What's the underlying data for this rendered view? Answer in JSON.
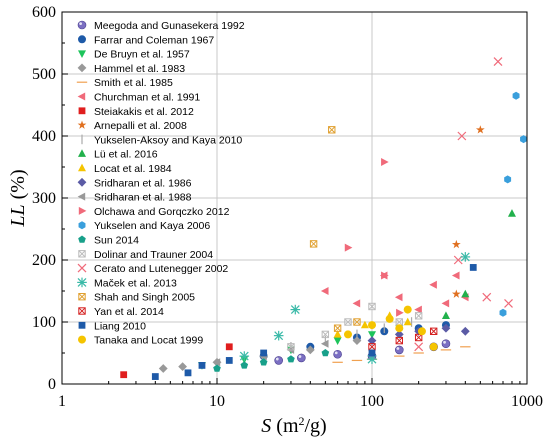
{
  "chart_data": {
    "type": "scatter",
    "x_scale": "log",
    "xlim": [
      1,
      1000
    ],
    "ylim": [
      0,
      600
    ],
    "x_ticks": [
      "1",
      "10",
      "100",
      "1000"
    ],
    "y_ticks": [
      "0",
      "100",
      "200",
      "300",
      "400",
      "500",
      "600"
    ],
    "xlabel": "S (m²/g)",
    "ylabel": "LL (%)",
    "grid": true,
    "legend_position": "top-left",
    "series": [
      {
        "name": "Meegoda and Gunasekera 1992",
        "marker": "sphere",
        "color": "#7b6fc2",
        "points": [
          [
            25,
            38
          ],
          [
            35,
            42
          ],
          [
            60,
            48
          ],
          [
            100,
            45
          ],
          [
            150,
            55
          ],
          [
            250,
            60
          ],
          [
            300,
            65
          ]
        ]
      },
      {
        "name": "Farrar and Coleman 1967",
        "marker": "circle",
        "color": "#1e5aa8",
        "points": [
          [
            20,
            45
          ],
          [
            40,
            60
          ],
          [
            80,
            75
          ],
          [
            120,
            85
          ],
          [
            200,
            90
          ],
          [
            300,
            95
          ]
        ]
      },
      {
        "name": "De Bruyn et al. 1957",
        "marker": "tri-down",
        "color": "#1dc45b",
        "points": [
          [
            8,
            30
          ],
          [
            15,
            40
          ],
          [
            30,
            55
          ],
          [
            60,
            70
          ],
          [
            100,
            80
          ],
          [
            150,
            90
          ]
        ]
      },
      {
        "name": "Hammel et al. 1983",
        "marker": "diamond",
        "color": "#999999",
        "points": [
          [
            4.5,
            25
          ],
          [
            6,
            28
          ],
          [
            10,
            35
          ],
          [
            20,
            45
          ],
          [
            40,
            55
          ],
          [
            80,
            70
          ]
        ]
      },
      {
        "name": "Smith et al. 1985",
        "marker": "dash",
        "color": "#f0a050",
        "points": [
          [
            60,
            35
          ],
          [
            80,
            38
          ],
          [
            100,
            40
          ],
          [
            150,
            45
          ],
          [
            200,
            50
          ],
          [
            300,
            55
          ],
          [
            400,
            60
          ]
        ]
      },
      {
        "name": "Churchman et al. 1991",
        "marker": "tri-left",
        "color": "#f06a7a",
        "points": [
          [
            50,
            150
          ],
          [
            80,
            130
          ],
          [
            120,
            175
          ],
          [
            150,
            140
          ],
          [
            200,
            120
          ],
          [
            250,
            160
          ],
          [
            300,
            130
          ],
          [
            350,
            175
          ],
          [
            400,
            140
          ]
        ]
      },
      {
        "name": "Steiakakis et al. 2012",
        "marker": "square",
        "color": "#e01e1e",
        "points": [
          [
            2.5,
            15
          ],
          [
            12,
            60
          ]
        ]
      },
      {
        "name": "Arnepalli et al. 2008",
        "marker": "star",
        "color": "#e07020",
        "points": [
          [
            350,
            225
          ],
          [
            500,
            410
          ],
          [
            350,
            145
          ]
        ]
      },
      {
        "name": "Yukselen-Aksoy and Kaya 2010",
        "marker": "vline",
        "color": "#aaaaaa",
        "points": [
          [
            30,
            60
          ],
          [
            50,
            70
          ],
          [
            80,
            80
          ],
          [
            120,
            90
          ],
          [
            180,
            100
          ]
        ]
      },
      {
        "name": "Lü et al. 2016",
        "marker": "tri-up",
        "color": "#22b14c",
        "points": [
          [
            800,
            275
          ],
          [
            400,
            145
          ],
          [
            300,
            110
          ]
        ]
      },
      {
        "name": "Locat et al. 1984",
        "marker": "tri-up",
        "color": "#f5c400",
        "points": [
          [
            60,
            80
          ],
          [
            90,
            95
          ],
          [
            130,
            110
          ],
          [
            170,
            100
          ]
        ]
      },
      {
        "name": "Sridharan et al. 1986",
        "marker": "diamond",
        "color": "#5b5ba5",
        "points": [
          [
            100,
            70
          ],
          [
            150,
            80
          ],
          [
            200,
            85
          ],
          [
            300,
            90
          ],
          [
            400,
            85
          ]
        ]
      },
      {
        "name": "Sridharan et al. 1988",
        "marker": "tri-left",
        "color": "#999999",
        "points": [
          [
            10,
            35
          ],
          [
            20,
            45
          ],
          [
            30,
            55
          ],
          [
            50,
            65
          ]
        ]
      },
      {
        "name": "Olchawa and Gorqczko 2012",
        "marker": "tri-right",
        "color": "#f06a7a",
        "points": [
          [
            70,
            220
          ],
          [
            120,
            358
          ],
          [
            120,
            175
          ],
          [
            150,
            115
          ]
        ]
      },
      {
        "name": "Yukselen and Kaya 2006",
        "marker": "hexagon",
        "color": "#3a9fdc",
        "points": [
          [
            850,
            465
          ],
          [
            950,
            395
          ],
          [
            750,
            330
          ],
          [
            700,
            115
          ]
        ]
      },
      {
        "name": "Sun 2014",
        "marker": "pentagon",
        "color": "#18a08a",
        "points": [
          [
            10,
            25
          ],
          [
            15,
            30
          ],
          [
            20,
            35
          ],
          [
            30,
            40
          ],
          [
            50,
            50
          ]
        ]
      },
      {
        "name": "Dolinar and Trauner 2004",
        "marker": "boxed-x",
        "color": "#bbbbbb",
        "points": [
          [
            30,
            60
          ],
          [
            50,
            80
          ],
          [
            70,
            100
          ],
          [
            100,
            125
          ],
          [
            150,
            100
          ],
          [
            200,
            110
          ]
        ]
      },
      {
        "name": "Cerato and Lutenegger 2002",
        "marker": "x",
        "color": "#f06a7a",
        "points": [
          [
            650,
            520
          ],
          [
            380,
            400
          ],
          [
            360,
            200
          ],
          [
            550,
            140
          ],
          [
            760,
            130
          ],
          [
            200,
            60
          ]
        ]
      },
      {
        "name": "Maček et al. 2013",
        "marker": "asterisk",
        "color": "#3abaa8",
        "points": [
          [
            32,
            120
          ],
          [
            400,
            205
          ],
          [
            25,
            78
          ],
          [
            15,
            45
          ],
          [
            100,
            40
          ]
        ]
      },
      {
        "name": "Shah and Singh 2005",
        "marker": "boxed-x",
        "color": "#e0a030",
        "points": [
          [
            55,
            410
          ],
          [
            42,
            226
          ],
          [
            60,
            90
          ],
          [
            80,
            100
          ]
        ]
      },
      {
        "name": "Yan et al. 2014",
        "marker": "boxed-x",
        "color": "#d42020",
        "points": [
          [
            100,
            60
          ],
          [
            150,
            70
          ],
          [
            200,
            75
          ],
          [
            250,
            85
          ]
        ]
      },
      {
        "name": "Liang 2010",
        "marker": "square",
        "color": "#1e5aa8",
        "points": [
          [
            4,
            12
          ],
          [
            6.5,
            18
          ],
          [
            8,
            30
          ],
          [
            12,
            38
          ],
          [
            20,
            50
          ],
          [
            450,
            188
          ],
          [
            100,
            50
          ]
        ]
      },
      {
        "name": "Tanaka and Locat 1999",
        "marker": "circle",
        "color": "#f5c400",
        "points": [
          [
            70,
            80
          ],
          [
            100,
            95
          ],
          [
            130,
            105
          ],
          [
            170,
            120
          ],
          [
            210,
            85
          ],
          [
            250,
            60
          ],
          [
            150,
            90
          ]
        ]
      }
    ]
  }
}
